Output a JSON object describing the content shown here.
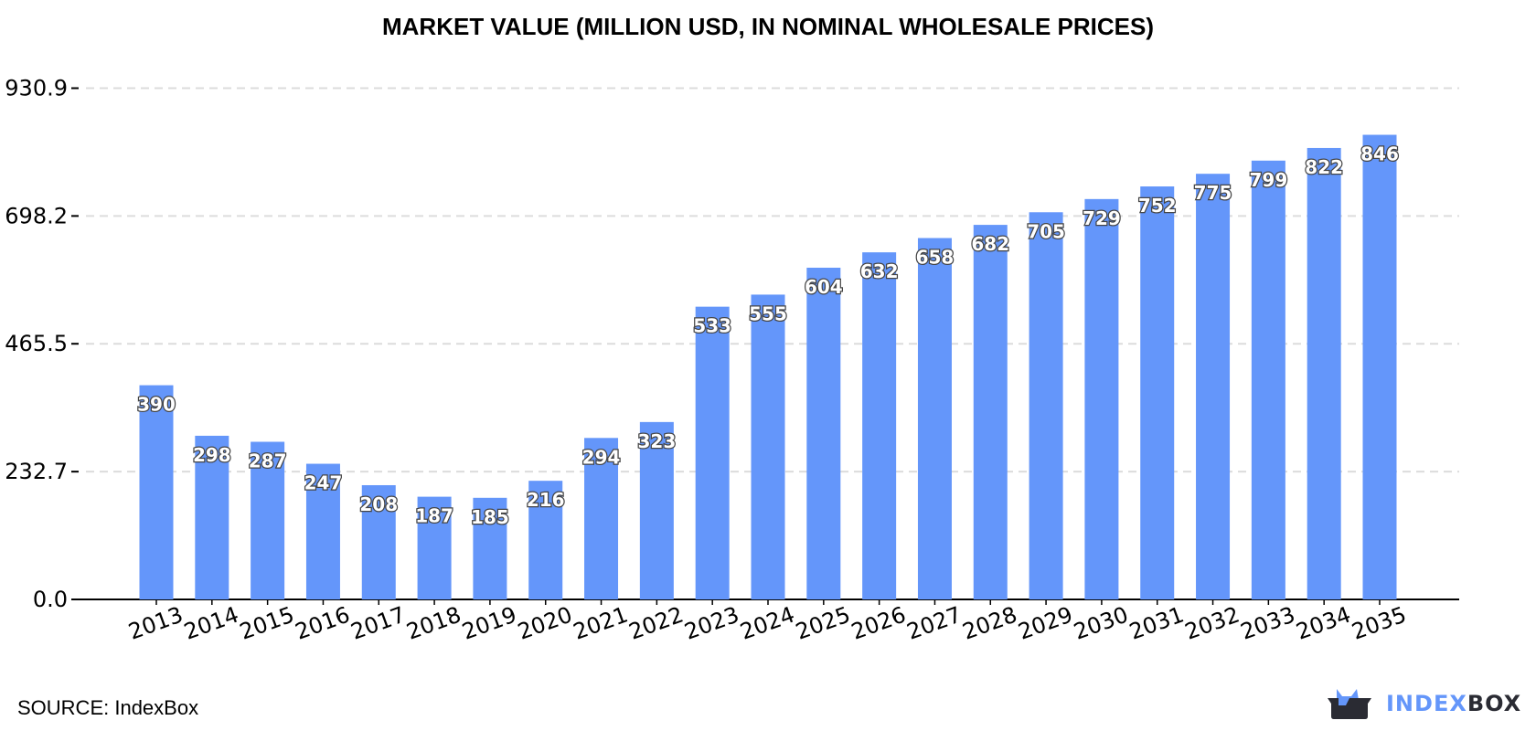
{
  "chart_data": {
    "type": "bar",
    "title": "MARKET VALUE (MILLION USD, IN NOMINAL WHOLESALE PRICES)",
    "xlabel": "",
    "ylabel": "",
    "categories": [
      "2013",
      "2014",
      "2015",
      "2016",
      "2017",
      "2018",
      "2019",
      "2020",
      "2021",
      "2022",
      "2023",
      "2024",
      "2025",
      "2026",
      "2027",
      "2028",
      "2029",
      "2030",
      "2031",
      "2032",
      "2033",
      "2034",
      "2035"
    ],
    "values": [
      390,
      298,
      287,
      247,
      208,
      187,
      185,
      216,
      294,
      323,
      533,
      555,
      604,
      632,
      658,
      682,
      705,
      729,
      752,
      775,
      799,
      822,
      846
    ],
    "yticks": [
      "0.0",
      "232.7",
      "465.5",
      "698.2",
      "930.9"
    ],
    "ylim": [
      0,
      930.9
    ],
    "grid": true,
    "bar_color": "#6496fa"
  },
  "footer": {
    "source": "SOURCE: IndexBox"
  },
  "logo": {
    "part1": "INDEX",
    "part2": "BOX"
  }
}
